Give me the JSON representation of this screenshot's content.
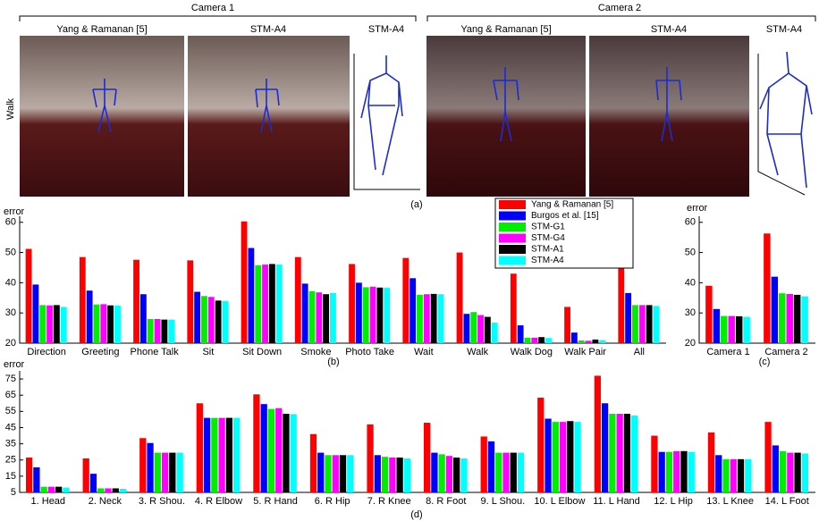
{
  "figure": {
    "camera_titles": [
      "Camera 1",
      "Camera 2"
    ],
    "row_label": "Walk",
    "panel_titles": [
      "Yang & Ramanan [5]",
      "STM-A4",
      "STM-A4",
      "Yang & Ramanan [5]",
      "STM-A4",
      "STM-A4"
    ],
    "caption": "(a)"
  },
  "chart_data": [
    {
      "type": "bar",
      "y_label": "error",
      "caption": "(b)",
      "ylim": [
        20,
        62
      ],
      "yticks": [
        20,
        30,
        40,
        50,
        60
      ],
      "legend": "top-right",
      "categories": [
        "Direction",
        "Greeting",
        "Phone Talk",
        "Sit",
        "Sit Down",
        "Smoke",
        "Photo Take",
        "Wait",
        "Walk",
        "Walk Dog",
        "Walk Pair",
        "All"
      ],
      "series": [
        {
          "name": "Yang & Ramanan [5]",
          "color": "#ff0000",
          "values": [
            51.2,
            48.5,
            47.6,
            47.4,
            60.3,
            48.5,
            46.2,
            48.2,
            50,
            43,
            32,
            47.4
          ]
        },
        {
          "name": "Burgos et al. [15]",
          "color": "#0000ff",
          "values": [
            39.4,
            37.4,
            36.2,
            37,
            51.5,
            39.7,
            40,
            41.5,
            29.7,
            25.9,
            23.5,
            36.6
          ]
        },
        {
          "name": "STM-G1",
          "color": "#00ee00",
          "values": [
            32.6,
            32.8,
            28,
            35.6,
            45.8,
            37.2,
            38.5,
            36,
            30.3,
            21.8,
            20.9,
            32.6
          ]
        },
        {
          "name": "STM-G4",
          "color": "#ff00ff",
          "values": [
            32.5,
            32.9,
            28,
            35.3,
            46,
            36.8,
            38.7,
            36.2,
            29.3,
            21.8,
            20.8,
            32.6
          ]
        },
        {
          "name": "STM-A1",
          "color": "#000000",
          "values": [
            32.6,
            32.5,
            27.8,
            34.1,
            46.2,
            36.2,
            38.4,
            36.3,
            28.7,
            22,
            21.2,
            32.6
          ]
        },
        {
          "name": "STM-A4",
          "color": "#00ffff",
          "values": [
            32,
            32.4,
            27.8,
            34,
            46,
            36.6,
            38.3,
            36.2,
            26.8,
            21.7,
            21,
            32.3
          ]
        }
      ]
    },
    {
      "type": "bar",
      "y_label": "error",
      "caption": "(c)",
      "ylim": [
        20,
        62
      ],
      "yticks": [
        20,
        30,
        40,
        50,
        60
      ],
      "categories": [
        "Camera 1",
        "Camera 2"
      ],
      "series": [
        {
          "values": [
            39,
            56.3
          ]
        },
        {
          "values": [
            31.3,
            42
          ]
        },
        {
          "values": [
            29,
            36.5
          ]
        },
        {
          "values": [
            29,
            36.3
          ]
        },
        {
          "values": [
            28.9,
            36
          ]
        },
        {
          "values": [
            28.7,
            35.5
          ]
        }
      ]
    },
    {
      "type": "bar",
      "y_label": "error",
      "caption": "(d)",
      "ylim": [
        5,
        80
      ],
      "yticks": [
        5,
        15,
        25,
        35,
        45,
        55,
        65,
        75
      ],
      "categories": [
        "1. Head",
        "2. Neck",
        "3. R Shou.",
        "4. R Elbow",
        "5. R Hand",
        "6. R Hip",
        "7. R Knee",
        "8. R Foot",
        "9. L Shou.",
        "10. L Elbow",
        "11. L Hand",
        "12. L Hip",
        "13. L Knee",
        "14. L Foot"
      ],
      "series": [
        {
          "values": [
            26.5,
            26,
            38.5,
            60,
            65.5,
            41,
            47,
            48,
            39.5,
            63.5,
            77,
            40,
            42,
            48.5
          ]
        },
        {
          "values": [
            20.5,
            16.5,
            35.5,
            51,
            59.5,
            29.5,
            28,
            29.5,
            36.5,
            50.5,
            60,
            30,
            28,
            34
          ]
        },
        {
          "values": [
            8.5,
            7.5,
            29.5,
            51,
            56.5,
            28,
            27,
            28.5,
            29.5,
            48.5,
            53.5,
            30,
            25.5,
            30.5
          ]
        },
        {
          "values": [
            8.5,
            7.5,
            29.5,
            51,
            57,
            28,
            26.5,
            27.5,
            29.5,
            48.5,
            53.5,
            30.5,
            25.5,
            29.5
          ]
        },
        {
          "values": [
            8.5,
            7.5,
            29.5,
            51,
            53.5,
            28,
            26.5,
            26.5,
            29.5,
            49,
            53.5,
            30.5,
            25.5,
            29.5
          ]
        },
        {
          "values": [
            8,
            7.2,
            29.5,
            51,
            53.3,
            28,
            26,
            26,
            29.5,
            48.5,
            52.5,
            30,
            25.5,
            29
          ]
        }
      ]
    }
  ]
}
